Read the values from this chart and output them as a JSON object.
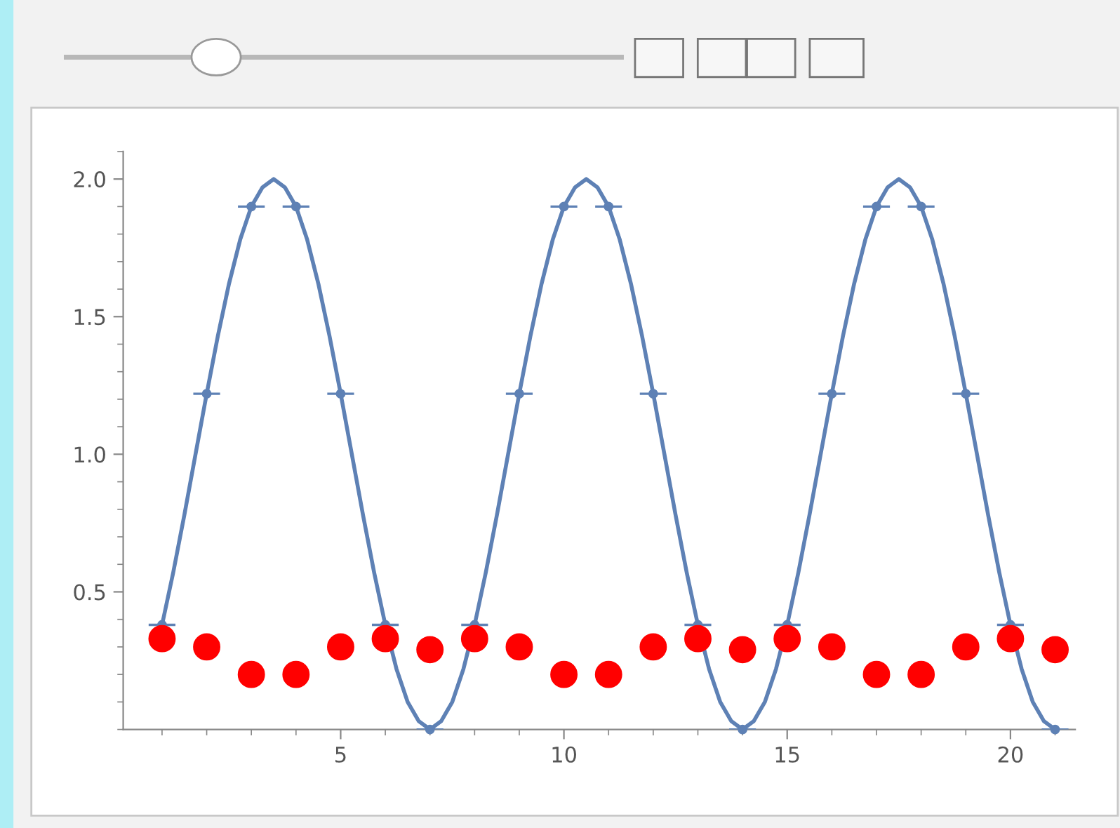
{
  "chart_data": {
    "type": "line",
    "series": [
      {
        "color": "#5e81b5",
        "x": [
          1,
          1.25,
          1.5,
          1.75,
          2,
          2.25,
          2.5,
          2.75,
          3,
          3.25,
          3.5,
          3.75,
          4,
          4.25,
          4.5,
          4.75,
          5,
          5.25,
          5.5,
          5.75,
          6,
          6.25,
          6.5,
          6.75,
          7,
          7.25,
          7.5,
          7.75,
          8,
          8.25,
          8.5,
          8.75,
          9,
          9.25,
          9.5,
          9.75,
          10,
          10.25,
          10.5,
          10.75,
          11,
          11.25,
          11.5,
          11.75,
          12,
          12.25,
          12.5,
          12.75,
          13,
          13.25,
          13.5,
          13.75,
          14,
          14.25,
          14.5,
          14.75,
          15,
          15.25,
          15.5,
          15.75,
          16,
          16.25,
          16.5,
          16.75,
          17,
          17.25,
          17.5,
          17.75,
          18,
          18.25,
          18.5,
          18.75,
          19,
          19.25,
          19.5,
          19.75,
          20,
          20.25,
          20.5,
          20.75,
          21
        ],
        "values": [
          0.38,
          0.57,
          0.78,
          1,
          1.22,
          1.43,
          1.62,
          1.78,
          1.9,
          1.97,
          2,
          1.97,
          1.9,
          1.78,
          1.62,
          1.43,
          1.22,
          1,
          0.78,
          0.57,
          0.38,
          0.22,
          0.1,
          0.03,
          0,
          0.03,
          0.1,
          0.22,
          0.38,
          0.57,
          0.78,
          1,
          1.22,
          1.43,
          1.62,
          1.78,
          1.9,
          1.97,
          2,
          1.97,
          1.9,
          1.78,
          1.62,
          1.43,
          1.22,
          1,
          0.78,
          0.57,
          0.38,
          0.22,
          0.1,
          0.03,
          0,
          0.03,
          0.1,
          0.22,
          0.38,
          0.57,
          0.78,
          1,
          1.22,
          1.43,
          1.62,
          1.78,
          1.9,
          1.97,
          2,
          1.97,
          1.9,
          1.78,
          1.62,
          1.43,
          1.22,
          1,
          0.78,
          0.57,
          0.38,
          0.22,
          0.1,
          0.03,
          0
        ]
      },
      {
        "type": "scatter",
        "marker": "circle",
        "color": "#5e81b5",
        "x": [
          1,
          2,
          3,
          4,
          5,
          6,
          7,
          8,
          9,
          10,
          11,
          12,
          13,
          14,
          15,
          16,
          17,
          18,
          19,
          20,
          21
        ],
        "values": [
          0.38,
          1.22,
          1.9,
          1.9,
          1.22,
          0.38,
          0,
          0.38,
          1.22,
          1.9,
          1.9,
          1.22,
          0.38,
          0,
          0.38,
          1.22,
          1.9,
          1.9,
          1.22,
          0.38,
          0
        ],
        "xerrors": [
          0.3,
          0.3,
          0.3,
          0.3,
          0.3,
          0.3,
          0.3,
          0.3,
          0.3,
          0.3,
          0.3,
          0.3,
          0.3,
          0.3,
          0.3,
          0.3,
          0.3,
          0.3,
          0.3,
          0.3,
          0.3
        ]
      },
      {
        "type": "scatter",
        "marker": "circle",
        "color": "#ff0000",
        "x": [
          1,
          2,
          3,
          4,
          5,
          6,
          7,
          8,
          9,
          10,
          11,
          12,
          13,
          14,
          15,
          16,
          17,
          18,
          19,
          20,
          21
        ],
        "values": [
          0.33,
          0.3,
          0.2,
          0.2,
          0.3,
          0.33,
          0.29,
          0.33,
          0.3,
          0.2,
          0.2,
          0.3,
          0.33,
          0.29,
          0.33,
          0.3,
          0.2,
          0.2,
          0.3,
          0.33,
          0.29
        ]
      }
    ],
    "xlim": [
      0.13,
      21.45
    ],
    "ylim": [
      0,
      2.1
    ],
    "xticks": [
      5,
      10,
      15,
      20
    ],
    "yticks": [
      {
        "value": 0.5,
        "label": "0.5"
      },
      {
        "value": 1.0,
        "label": "1.0"
      },
      {
        "value": 1.5,
        "label": "1.5"
      },
      {
        "value": 2.0,
        "label": "2.0"
      }
    ],
    "grid": false
  }
}
